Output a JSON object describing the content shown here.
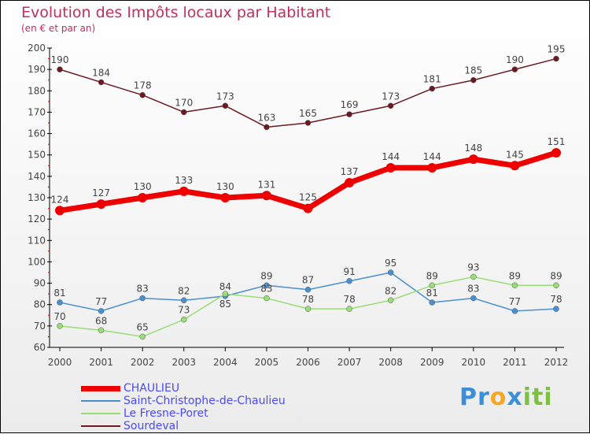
{
  "chart_data": {
    "type": "line",
    "title": "Evolution des Impôts locaux par Habitant",
    "subtitle": "(en € et par an)",
    "x": [
      "2000",
      "2001",
      "2002",
      "2003",
      "2004",
      "2005",
      "2006",
      "2007",
      "2008",
      "2009",
      "2010",
      "2011",
      "2012"
    ],
    "ylim": [
      60,
      200
    ],
    "yticks": [
      60,
      70,
      80,
      90,
      100,
      110,
      120,
      130,
      140,
      150,
      160,
      170,
      180,
      190,
      200
    ],
    "series": [
      {
        "name": "CHAULIEU",
        "color": "#ee0000",
        "values": [
          124,
          127,
          130,
          133,
          130,
          131,
          125,
          137,
          144,
          144,
          148,
          145,
          151
        ]
      },
      {
        "name": "Saint-Christophe-de-Chaulieu",
        "color": "#4a90d0",
        "values": [
          81,
          77,
          83,
          82,
          84,
          89,
          87,
          91,
          95,
          81,
          83,
          77,
          78
        ]
      },
      {
        "name": "Le Fresne-Poret",
        "color": "#99dd77",
        "values": [
          70,
          68,
          65,
          73,
          85,
          83,
          78,
          78,
          82,
          89,
          93,
          89,
          89
        ]
      },
      {
        "name": "Sourdeval",
        "color": "#6b1a22",
        "values": [
          190,
          184,
          178,
          170,
          173,
          163,
          165,
          169,
          173,
          181,
          185,
          190,
          195
        ]
      }
    ],
    "legend_placement": "bottom-left"
  },
  "logo": {
    "text": "Proxiti"
  }
}
